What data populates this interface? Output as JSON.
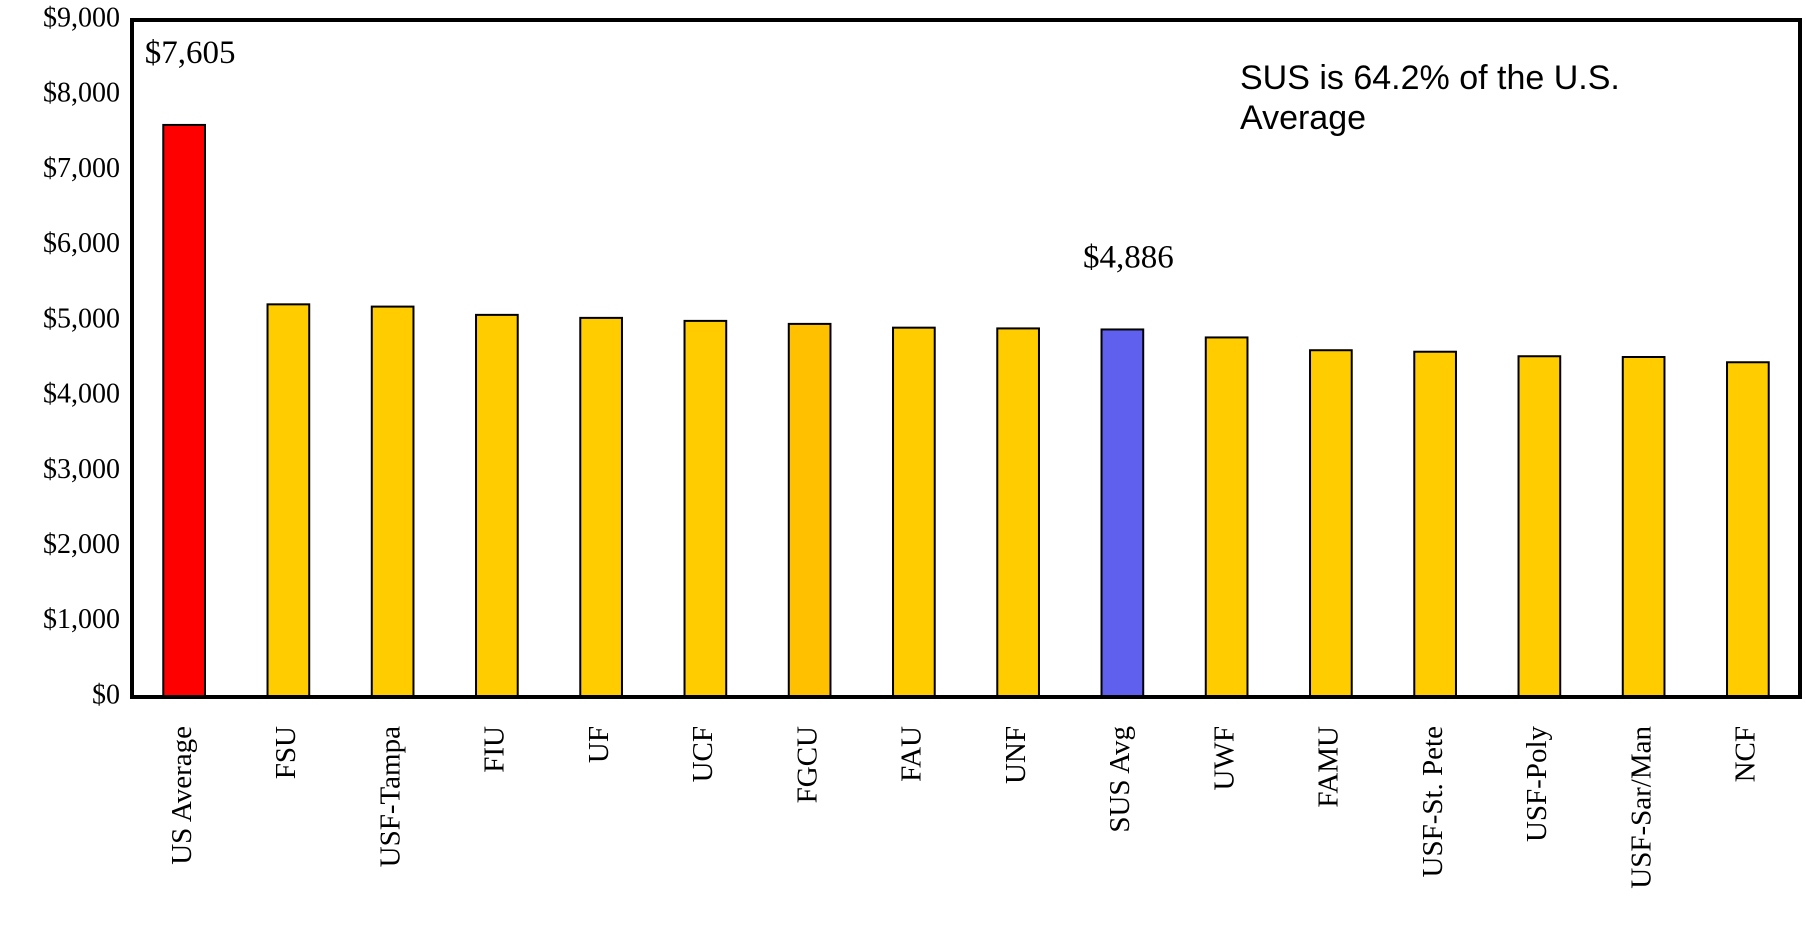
{
  "chart_data": {
    "type": "bar",
    "categories": [
      "US Average",
      "FSU",
      "USF-Tampa",
      "FIU",
      "UF",
      "UCF",
      "FGCU",
      "FAU",
      "UNF",
      "SUS Avg",
      "UWF",
      "FAMU",
      "USF-St. Pete",
      "USF-Poly",
      "USF-Sar/Man",
      "NCF"
    ],
    "values": [
      7605,
      5220,
      5190,
      5080,
      5040,
      5000,
      4960,
      4910,
      4900,
      4886,
      4780,
      4610,
      4590,
      4530,
      4520,
      4450
    ],
    "value_labels": [
      "$7,605",
      null,
      null,
      null,
      null,
      null,
      null,
      null,
      null,
      "$4,886",
      null,
      null,
      null,
      null,
      null,
      null
    ],
    "colors": [
      "#ff0000",
      "#ffcc00",
      "#ffcc00",
      "#ffcc00",
      "#ffcc00",
      "#ffcc00",
      "#ffc000",
      "#ffcc00",
      "#ffcc00",
      "#6060ee",
      "#ffcc00",
      "#ffcc00",
      "#ffcc00",
      "#ffcc00",
      "#ffcc00",
      "#ffcc00"
    ],
    "annotation": "SUS is 64.2% of the U.S. Average",
    "ylim": [
      0,
      9000
    ],
    "yticks": [
      {
        "value": 0,
        "label": "$0"
      },
      {
        "value": 1000,
        "label": "$1,000"
      },
      {
        "value": 2000,
        "label": "$2,000"
      },
      {
        "value": 3000,
        "label": "$3,000"
      },
      {
        "value": 4000,
        "label": "$4,000"
      },
      {
        "value": 5000,
        "label": "$5,000"
      },
      {
        "value": 6000,
        "label": "$6,000"
      },
      {
        "value": 7000,
        "label": "$7,000"
      },
      {
        "value": 8000,
        "label": "$8,000"
      },
      {
        "value": 9000,
        "label": "$9,000"
      }
    ],
    "grid": false
  }
}
